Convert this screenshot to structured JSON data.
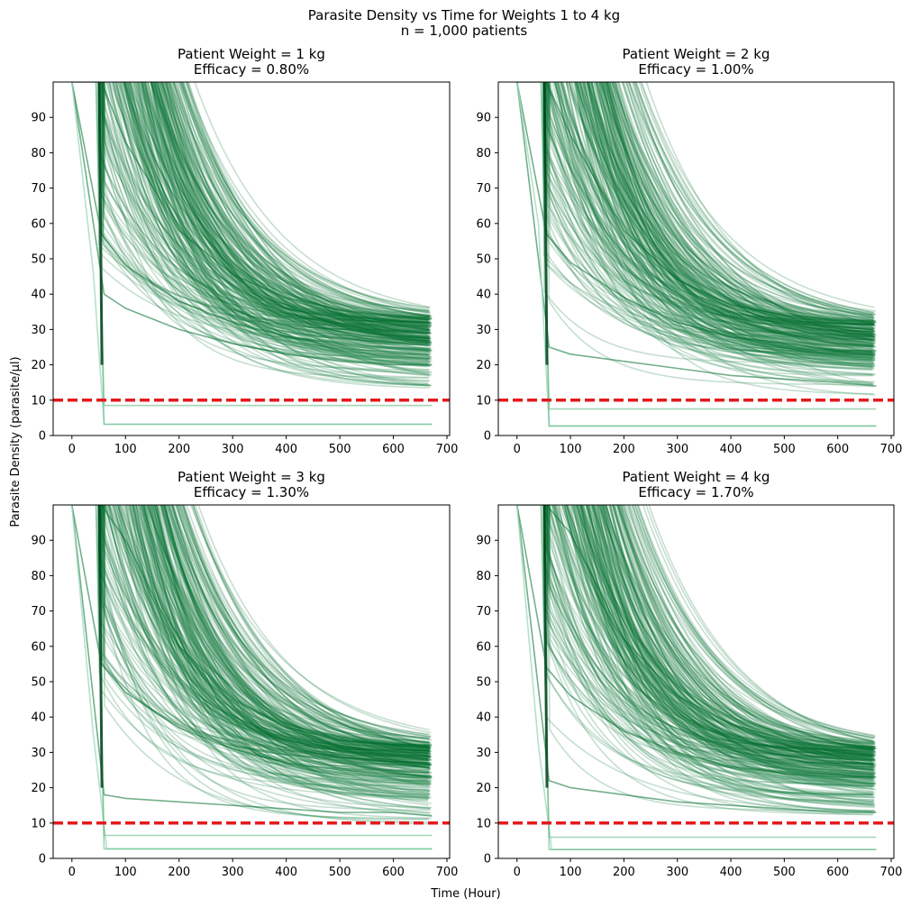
{
  "figure": {
    "suptitle_line1": "Parasite Density vs Time for Weights 1 to 4 kg",
    "suptitle_line2": "n = 1,000 patients",
    "shared_xlabel": "Time (Hour)",
    "shared_ylabel": "Parasite Density (parasite/µl)"
  },
  "colors": {
    "curve_green": "#006d2c",
    "light_green": "#a1d9c0",
    "threshold_red": "#e41a1c"
  },
  "chart_data": [
    {
      "type": "line",
      "title_line1": "Patient Weight = 1 kg",
      "title_line2": "Efficacy = 0.80%",
      "xlim": [
        -35,
        705
      ],
      "ylim": [
        0,
        100
      ],
      "xticks": [
        0,
        100,
        200,
        300,
        400,
        500,
        600,
        700
      ],
      "yticks": [
        0,
        10,
        20,
        30,
        40,
        50,
        60,
        70,
        80,
        90
      ],
      "threshold": 10,
      "grid": false,
      "drop_time_range": [
        50,
        70
      ],
      "end_time": 672,
      "series_summary": {
        "count": 1000,
        "final_density_range": [
          3,
          33
        ],
        "outliers_final": [
          3.2,
          8.5
        ]
      },
      "series_sample": [
        {
          "x": [
            0,
            55,
            100,
            200,
            300,
            400,
            500,
            600,
            672
          ],
          "y": [
            100,
            100,
            83,
            58,
            45.5,
            39,
            35.5,
            33.5,
            33
          ]
        },
        {
          "x": [
            0,
            55,
            100,
            200,
            300,
            400,
            500,
            600,
            672
          ],
          "y": [
            100,
            57,
            48,
            38,
            32,
            28,
            26,
            25,
            24
          ]
        },
        {
          "x": [
            0,
            60,
            100,
            200,
            300,
            400,
            500,
            600,
            672
          ],
          "y": [
            100,
            40,
            36,
            30,
            26,
            23,
            21,
            20,
            20
          ]
        },
        {
          "x": [
            0,
            40,
            60,
            672
          ],
          "y": [
            100,
            46,
            3.2,
            3.2
          ]
        }
      ]
    },
    {
      "type": "line",
      "title_line1": "Patient Weight = 2 kg",
      "title_line2": "Efficacy = 1.00%",
      "xlim": [
        -35,
        705
      ],
      "ylim": [
        0,
        100
      ],
      "xticks": [
        0,
        100,
        200,
        300,
        400,
        500,
        600,
        700
      ],
      "yticks": [
        0,
        10,
        20,
        30,
        40,
        50,
        60,
        70,
        80,
        90
      ],
      "threshold": 10,
      "grid": false,
      "drop_time_range": [
        50,
        70
      ],
      "end_time": 672,
      "series_summary": {
        "count": 1000,
        "final_density_range": [
          3,
          32
        ],
        "outliers_final": [
          2.7,
          7.5
        ]
      },
      "series_sample": [
        {
          "x": [
            0,
            55,
            100,
            200,
            300,
            400,
            500,
            600,
            672
          ],
          "y": [
            100,
            100,
            85,
            58,
            44,
            37,
            34,
            32.5,
            32
          ]
        },
        {
          "x": [
            0,
            55,
            100,
            200,
            300,
            400,
            500,
            600,
            672
          ],
          "y": [
            100,
            57,
            49,
            39,
            32,
            28,
            26,
            24,
            24
          ]
        },
        {
          "x": [
            0,
            60,
            100,
            200,
            300,
            400,
            500,
            600,
            672
          ],
          "y": [
            100,
            25,
            23,
            21,
            19,
            17,
            16,
            15,
            14
          ]
        },
        {
          "x": [
            0,
            40,
            60,
            672
          ],
          "y": [
            100,
            60,
            2.7,
            2.7
          ]
        }
      ]
    },
    {
      "type": "line",
      "title_line1": "Patient Weight = 3 kg",
      "title_line2": "Efficacy = 1.30%",
      "xlim": [
        -35,
        705
      ],
      "ylim": [
        0,
        100
      ],
      "xticks": [
        0,
        100,
        200,
        300,
        400,
        500,
        600,
        700
      ],
      "yticks": [
        0,
        10,
        20,
        30,
        40,
        50,
        60,
        70,
        80,
        90
      ],
      "threshold": 10,
      "grid": false,
      "drop_time_range": [
        50,
        70
      ],
      "end_time": 672,
      "series_summary": {
        "count": 1000,
        "final_density_range": [
          3,
          32
        ],
        "outliers_final": [
          2.7,
          6.5
        ]
      },
      "series_sample": [
        {
          "x": [
            0,
            55,
            100,
            200,
            300,
            400,
            500,
            600,
            672
          ],
          "y": [
            100,
            100,
            90,
            60,
            45,
            37,
            33.5,
            32.2,
            32
          ]
        },
        {
          "x": [
            0,
            55,
            100,
            200,
            300,
            400,
            500,
            600,
            672
          ],
          "y": [
            100,
            55,
            47,
            37,
            31,
            27,
            25,
            24,
            23
          ]
        },
        {
          "x": [
            0,
            60,
            100,
            200,
            300,
            400,
            500,
            600,
            672
          ],
          "y": [
            100,
            18,
            17,
            16,
            15,
            14,
            13,
            13,
            12
          ]
        },
        {
          "x": [
            0,
            40,
            65,
            672
          ],
          "y": [
            100,
            35,
            2.7,
            2.7
          ]
        }
      ]
    },
    {
      "type": "line",
      "title_line1": "Patient Weight = 4 kg",
      "title_line2": "Efficacy = 1.70%",
      "xlim": [
        -35,
        705
      ],
      "ylim": [
        0,
        100
      ],
      "xticks": [
        0,
        100,
        200,
        300,
        400,
        500,
        600,
        700
      ],
      "yticks": [
        0,
        10,
        20,
        30,
        40,
        50,
        60,
        70,
        80,
        90
      ],
      "threshold": 10,
      "grid": false,
      "drop_time_range": [
        50,
        70
      ],
      "end_time": 672,
      "series_summary": {
        "count": 1000,
        "final_density_range": [
          3,
          31
        ],
        "outliers_final": [
          2.5,
          6
        ]
      },
      "series_sample": [
        {
          "x": [
            0,
            55,
            100,
            200,
            300,
            400,
            500,
            600,
            672
          ],
          "y": [
            100,
            100,
            92,
            62,
            46,
            38,
            33.5,
            31.5,
            31
          ]
        },
        {
          "x": [
            0,
            55,
            100,
            200,
            300,
            400,
            500,
            600,
            672
          ],
          "y": [
            100,
            54,
            46,
            36,
            30,
            26,
            24,
            23,
            23
          ]
        },
        {
          "x": [
            0,
            60,
            100,
            200,
            300,
            400,
            500,
            600,
            672
          ],
          "y": [
            100,
            22,
            20,
            18,
            16,
            15,
            14,
            13,
            13
          ]
        },
        {
          "x": [
            0,
            40,
            65,
            672
          ],
          "y": [
            100,
            32,
            2.5,
            2.5
          ]
        }
      ]
    }
  ]
}
